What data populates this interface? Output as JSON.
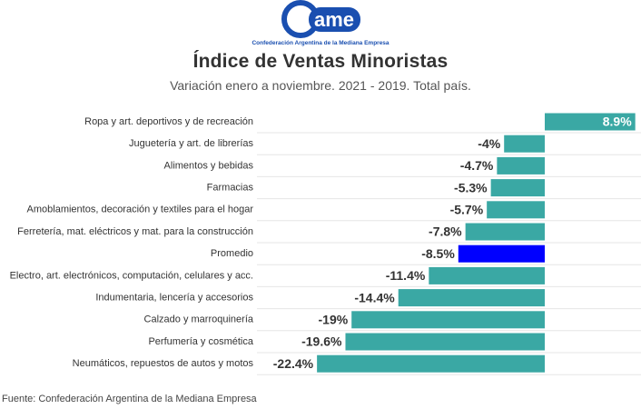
{
  "logo": {
    "wordmark": "ame",
    "caption": "Confederación Argentina de la Mediana Empresa",
    "color": "#1a4fb0"
  },
  "chart_data": {
    "type": "bar",
    "orientation": "horizontal",
    "title": "Índice de Ventas Minoristas",
    "subtitle": "Variación enero a noviembre. 2021 - 2019. Total país.",
    "source": "Fuente: Confederación Argentina de la Mediana Empresa",
    "categories": [
      "Ropa y art. deportivos y de recreación",
      "Juguetería y art. de librerías",
      "Alimentos y bebidas",
      "Farmacias",
      "Amoblamientos, decoración y textiles para el hogar",
      "Ferretería, mat. eléctricos y mat. para  la construcción",
      "Promedio",
      "Electro, art. electrónicos, computación, celulares y acc.",
      "Indumentaria, lencería y accesorios",
      "Calzado y marroquinería",
      "Perfumería y cosmética",
      "Neumáticos, repuestos de autos y motos"
    ],
    "values": [
      8.9,
      -4,
      -4.7,
      -5.3,
      -5.7,
      -7.8,
      -8.5,
      -11.4,
      -14.4,
      -19,
      -19.6,
      -22.4
    ],
    "value_labels": [
      "8.9%",
      "-4%",
      "-4.7%",
      "-5.3%",
      "-5.7%",
      "-7.8%",
      "-8.5%",
      "-11.4%",
      "-14.4%",
      "-19%",
      "-19.6%",
      "-22.4%"
    ],
    "highlight_category": "Promedio",
    "colors": {
      "bar": "#3aa8a4",
      "highlight": "#0000ff",
      "grid": "#e6e6e6"
    },
    "xlim": [
      -22.4,
      8.9
    ],
    "grid": true,
    "legend": "none"
  }
}
